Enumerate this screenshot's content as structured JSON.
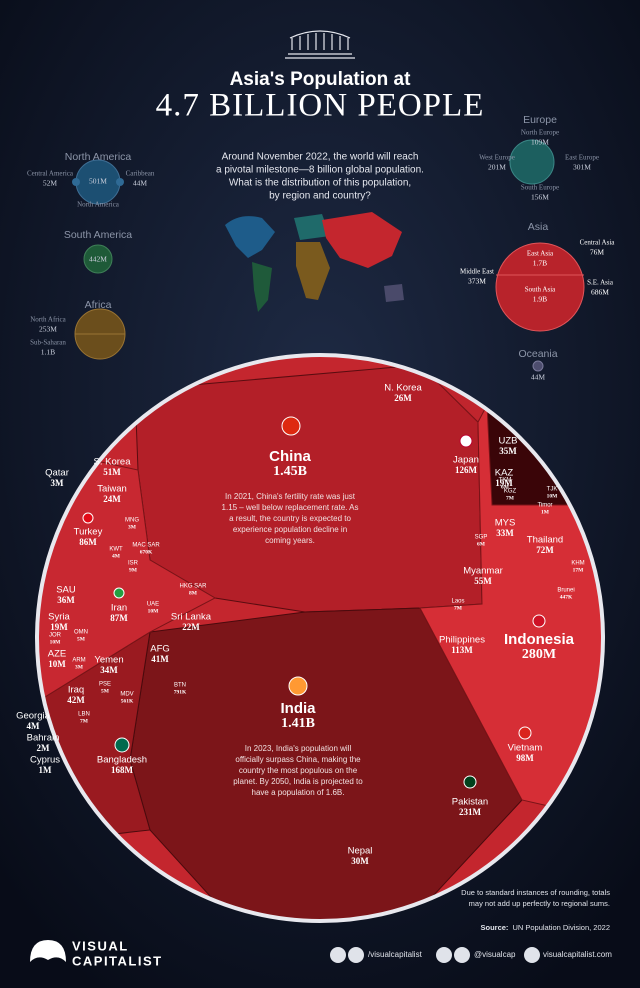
{
  "header": {
    "title_line1": "Asia's Population at",
    "title_line2": "4.7 BILLION PEOPLE",
    "intro": [
      "Around November 2022, the world will reach",
      "a pivotal milestone—8 billion global population.",
      "What is the distribution of this population,",
      "by region and country?"
    ]
  },
  "regions": {
    "north_america": {
      "name": "North America",
      "parts": [
        {
          "name": "Central America",
          "value": "52M"
        },
        {
          "name": "Caribbean",
          "value": "44M"
        },
        {
          "name": "North America",
          "value": "501M"
        }
      ]
    },
    "south_america": {
      "name": "South America",
      "value": "442M"
    },
    "africa": {
      "name": "Africa",
      "parts": [
        {
          "name": "North Africa",
          "value": "253M"
        },
        {
          "name": "Sub-Saharan",
          "value": "1.1B"
        }
      ]
    },
    "europe": {
      "name": "Europe",
      "parts": [
        {
          "name": "North Europe",
          "value": "109M"
        },
        {
          "name": "West Europe",
          "value": "201M"
        },
        {
          "name": "East Europe",
          "value": "301M"
        },
        {
          "name": "South  Europe",
          "value": "156M"
        }
      ]
    },
    "asia": {
      "name": "Asia",
      "parts": [
        {
          "name": "East Asia",
          "value": "1.7B"
        },
        {
          "name": "Central Asia",
          "value": "76M"
        },
        {
          "name": "Middle East",
          "value": "373M"
        },
        {
          "name": "South Asia",
          "value": "1.9B"
        },
        {
          "name": "S.E. Asia",
          "value": "686M"
        }
      ]
    },
    "oceania": {
      "name": "Oceania",
      "value": "44M"
    }
  },
  "countries": [
    {
      "name": "China",
      "value": "1.45B",
      "note": [
        "In 2021, China's fertility rate was just",
        "1.15 – well below replacement rate. As",
        "a result, the country is expected to",
        "experience population decline in",
        "coming years."
      ]
    },
    {
      "name": "India",
      "value": "1.41B",
      "note": [
        "In 2023, India's population will",
        "officially surpass China, making the",
        "country the most populous on the",
        "planet. By 2050, India is projected to",
        "have a population of 1.6B."
      ]
    },
    {
      "name": "N. Korea",
      "value": "26M"
    },
    {
      "name": "Japan",
      "value": "126M"
    },
    {
      "name": "UZB",
      "value": "35M"
    },
    {
      "name": "KAZ",
      "value": "19M"
    },
    {
      "name": "TKM",
      "value": "6M"
    },
    {
      "name": "KGZ",
      "value": "7M"
    },
    {
      "name": "TJK",
      "value": "10M"
    },
    {
      "name": "Timor",
      "value": "1M"
    },
    {
      "name": "MYS",
      "value": "33M"
    },
    {
      "name": "Thailand",
      "value": "72M"
    },
    {
      "name": "SGP",
      "value": "6M"
    },
    {
      "name": "Myanmar",
      "value": "55M"
    },
    {
      "name": "KHM",
      "value": "17M"
    },
    {
      "name": "Brunei",
      "value": "447K"
    },
    {
      "name": "Laos",
      "value": "7M"
    },
    {
      "name": "Philippines",
      "value": "113M"
    },
    {
      "name": "Indonesia",
      "value": "280M"
    },
    {
      "name": "Vietnam",
      "value": "98M"
    },
    {
      "name": "Pakistan",
      "value": "231M"
    },
    {
      "name": "Nepal",
      "value": "30M"
    },
    {
      "name": "Bangladesh",
      "value": "168M"
    },
    {
      "name": "S. Korea",
      "value": "51M"
    },
    {
      "name": "Taiwan",
      "value": "24M"
    },
    {
      "name": "Qatar",
      "value": "3M"
    },
    {
      "name": "Turkey",
      "value": "86M"
    },
    {
      "name": "MNG",
      "value": "3M"
    },
    {
      "name": "KWT",
      "value": "4M"
    },
    {
      "name": "MAC SAR",
      "value": "670K"
    },
    {
      "name": "ISR",
      "value": "9M"
    },
    {
      "name": "SAU",
      "value": "36M"
    },
    {
      "name": "Iran",
      "value": "87M"
    },
    {
      "name": "HKG SAR",
      "value": "8M"
    },
    {
      "name": "UAE",
      "value": "10M"
    },
    {
      "name": "Syria",
      "value": "19M"
    },
    {
      "name": "Sri Lanka",
      "value": "22M"
    },
    {
      "name": "JOR",
      "value": "10M"
    },
    {
      "name": "OMN",
      "value": "5M"
    },
    {
      "name": "AZE",
      "value": "10M"
    },
    {
      "name": "ARM",
      "value": "3M"
    },
    {
      "name": "AFG",
      "value": "41M"
    },
    {
      "name": "Yemen",
      "value": "34M"
    },
    {
      "name": "Iraq",
      "value": "42M"
    },
    {
      "name": "PSE",
      "value": "5M"
    },
    {
      "name": "MDV",
      "value": "561K"
    },
    {
      "name": "BTN",
      "value": "791K"
    },
    {
      "name": "LBN",
      "value": "7M"
    },
    {
      "name": "Georgia",
      "value": "4M"
    },
    {
      "name": "Bahrain",
      "value": "2M"
    },
    {
      "name": "Cyprus",
      "value": "1M"
    }
  ],
  "footnote": [
    "Due to standard instances of rounding, totals",
    "may not add up perfectly to regional sums."
  ],
  "source": {
    "label": "Source:",
    "text": "UN Population Division, 2022"
  },
  "footer": {
    "brand": [
      "VISUAL",
      "CAPITALIST"
    ],
    "handles": [
      "/visualcapitalist",
      "@visualcap",
      "visualcapitalist.com"
    ]
  }
}
